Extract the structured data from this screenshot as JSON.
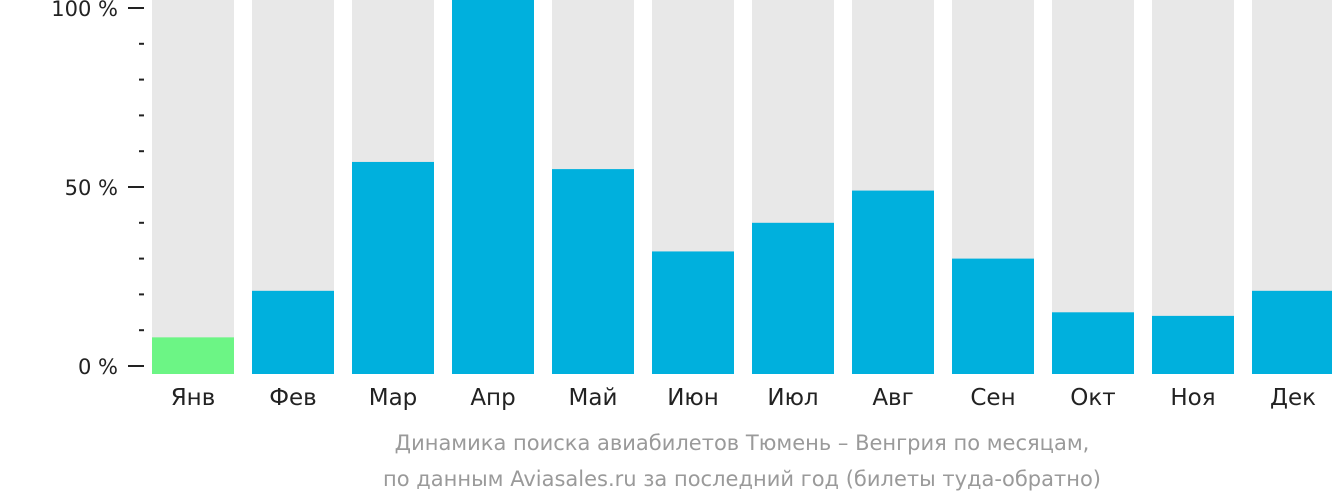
{
  "chart_data": {
    "type": "bar",
    "categories": [
      "Янв",
      "Фев",
      "Мар",
      "Апр",
      "Май",
      "Июн",
      "Июл",
      "Авг",
      "Сен",
      "Окт",
      "Ноя",
      "Дек"
    ],
    "values": [
      8,
      21,
      57,
      104,
      55,
      32,
      40,
      49,
      30,
      15,
      14,
      21
    ],
    "highlight_index": 0,
    "y_ticks": [
      "0 %",
      "50 %",
      "100 %"
    ],
    "ylim": [
      0,
      100
    ],
    "colors": {
      "bar": "#00b0dd",
      "highlight": "#6cf585",
      "background_bar": "#e8e8e8",
      "axis": "#222222"
    }
  },
  "caption": {
    "line1": "Динамика поиска авиабилетов Тюмень – Венгрия по месяцам,",
    "line2": "по данным Aviasales.ru за последний год (билеты туда-обратно)"
  }
}
